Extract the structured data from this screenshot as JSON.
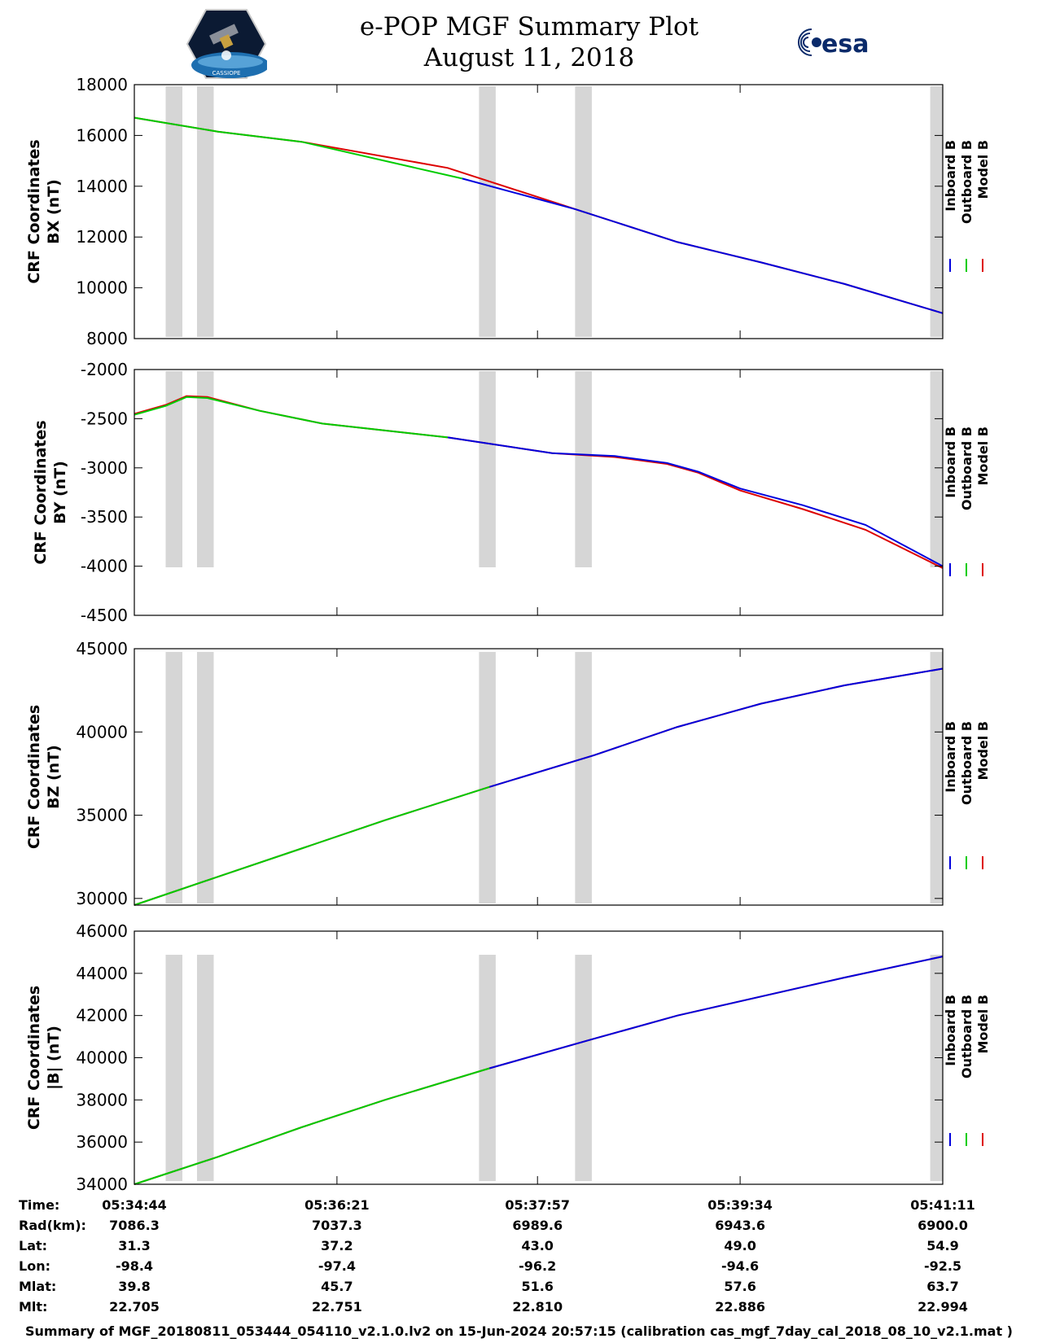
{
  "header": {
    "title_line1": "e-POP MGF Summary Plot",
    "title_line2": "August 11, 2018",
    "logo_left_text": "CASSIOPE",
    "logo_right_text": "esa"
  },
  "legend_entries": [
    {
      "name": "Inboard B",
      "color": "#0000dd"
    },
    {
      "name": "Outboard B",
      "color": "#00cc00"
    },
    {
      "name": "Model B",
      "color": "#dd0000"
    }
  ],
  "chart_data": [
    {
      "type": "line",
      "ylabel": [
        "CRF Coordinates",
        "BX (nT)"
      ],
      "ylim": [
        8000,
        18000
      ],
      "yticks": [
        8000,
        10000,
        12000,
        14000,
        16000,
        18000
      ],
      "xlim": [
        0,
        387
      ],
      "xticks": [
        0,
        97,
        193,
        290,
        387
      ],
      "gray_bands": [
        [
          15,
          23
        ],
        [
          30,
          38
        ],
        [
          165,
          173
        ],
        [
          211,
          219
        ],
        [
          381,
          387
        ]
      ],
      "series": [
        {
          "name": "Model B",
          "color": "#dd0000",
          "x": [
            0,
            40,
            80,
            150,
            211,
            260,
            300,
            340,
            387
          ],
          "values": [
            16700,
            16150,
            15750,
            14720,
            13100,
            11800,
            11000,
            10150,
            9000
          ]
        },
        {
          "name": "Inboard B",
          "color": "#0000dd",
          "x": [
            157,
            211,
            260,
            300,
            340,
            387
          ],
          "values": [
            14300,
            13100,
            11800,
            11000,
            10150,
            9000
          ]
        },
        {
          "name": "Outboard B",
          "color": "#00cc00",
          "x": [
            0,
            40,
            80,
            157
          ],
          "values": [
            16700,
            16150,
            15750,
            14300
          ]
        }
      ]
    },
    {
      "type": "line",
      "ylabel": [
        "CRF Coordinates",
        "BY (nT)"
      ],
      "ylim": [
        -4500,
        -2000
      ],
      "yticks": [
        -4500,
        -4000,
        -3500,
        -3000,
        -2500,
        -2000
      ],
      "xlim": [
        0,
        387
      ],
      "xticks": [
        0,
        97,
        193,
        290,
        387
      ],
      "gray_bands": [
        [
          15,
          23
        ],
        [
          30,
          38
        ],
        [
          165,
          173
        ],
        [
          211,
          219
        ],
        [
          381,
          387
        ]
      ],
      "series": [
        {
          "name": "Model B",
          "color": "#dd0000",
          "x": [
            0,
            15,
            25,
            35,
            60,
            90,
            120,
            150,
            200,
            230,
            255,
            270,
            290,
            320,
            350,
            387
          ],
          "values": [
            -2450,
            -2360,
            -2270,
            -2280,
            -2420,
            -2550,
            -2620,
            -2690,
            -2850,
            -2890,
            -2960,
            -3050,
            -3230,
            -3420,
            -3630,
            -4020
          ]
        },
        {
          "name": "Inboard B",
          "color": "#0000dd",
          "x": [
            150,
            200,
            230,
            255,
            270,
            290,
            320,
            350,
            387
          ],
          "values": [
            -2690,
            -2850,
            -2880,
            -2950,
            -3040,
            -3210,
            -3380,
            -3580,
            -4000
          ]
        },
        {
          "name": "Outboard B",
          "color": "#00cc00",
          "x": [
            0,
            15,
            25,
            35,
            60,
            90,
            120,
            150
          ],
          "values": [
            -2460,
            -2370,
            -2280,
            -2290,
            -2420,
            -2550,
            -2620,
            -2690
          ]
        }
      ]
    },
    {
      "type": "line",
      "ylabel": [
        "CRF Coordinates",
        "BZ (nT)"
      ],
      "ylim": [
        29600,
        45000
      ],
      "yticks": [
        30000,
        35000,
        40000,
        45000
      ],
      "xlim": [
        0,
        387
      ],
      "xticks": [
        0,
        97,
        193,
        290,
        387
      ],
      "gray_bands": [
        [
          15,
          23
        ],
        [
          30,
          38
        ],
        [
          165,
          173
        ],
        [
          211,
          219
        ],
        [
          381,
          387
        ]
      ],
      "series": [
        {
          "name": "Model B",
          "color": "#dd0000",
          "x": [
            0,
            40,
            80,
            120,
            170,
            220,
            260,
            300,
            340,
            387
          ],
          "values": [
            29600,
            31300,
            33000,
            34700,
            36700,
            38600,
            40300,
            41700,
            42800,
            43800
          ]
        },
        {
          "name": "Inboard B",
          "color": "#0000dd",
          "x": [
            170,
            220,
            260,
            300,
            340,
            387
          ],
          "values": [
            36700,
            38600,
            40300,
            41700,
            42800,
            43800
          ]
        },
        {
          "name": "Outboard B",
          "color": "#00cc00",
          "x": [
            0,
            40,
            80,
            120,
            170
          ],
          "values": [
            29600,
            31300,
            33000,
            34700,
            36700
          ]
        }
      ]
    },
    {
      "type": "line",
      "ylabel": [
        "CRF Coordinates",
        "|B| (nT)"
      ],
      "ylim": [
        34000,
        46000
      ],
      "yticks": [
        34000,
        36000,
        38000,
        40000,
        42000,
        44000,
        46000
      ],
      "xlim": [
        0,
        387
      ],
      "xticks": [
        0,
        97,
        193,
        290,
        387
      ],
      "gray_bands": [
        [
          15,
          23
        ],
        [
          30,
          38
        ],
        [
          165,
          173
        ],
        [
          211,
          219
        ],
        [
          381,
          387
        ]
      ],
      "series": [
        {
          "name": "Model B",
          "color": "#dd0000",
          "x": [
            0,
            40,
            80,
            120,
            170,
            220,
            260,
            300,
            340,
            387
          ],
          "values": [
            34000,
            35300,
            36700,
            38000,
            39500,
            40900,
            42000,
            42900,
            43800,
            44800
          ]
        },
        {
          "name": "Inboard B",
          "color": "#0000dd",
          "x": [
            170,
            220,
            260,
            300,
            340,
            387
          ],
          "values": [
            39500,
            40900,
            42000,
            42900,
            43800,
            44800
          ]
        },
        {
          "name": "Outboard B",
          "color": "#00cc00",
          "x": [
            0,
            40,
            80,
            120,
            170
          ],
          "values": [
            34000,
            35300,
            36700,
            38000,
            39500
          ]
        }
      ]
    }
  ],
  "ephemeris": {
    "rows": [
      {
        "label": "Time:",
        "values": [
          "05:34:44",
          "05:36:21",
          "05:37:57",
          "05:39:34",
          "05:41:11"
        ]
      },
      {
        "label": "Rad(km):",
        "values": [
          "7086.3",
          "7037.3",
          "6989.6",
          "6943.6",
          "6900.0"
        ]
      },
      {
        "label": "Lat:",
        "values": [
          "31.3",
          "37.2",
          "43.0",
          "49.0",
          "54.9"
        ]
      },
      {
        "label": "Lon:",
        "values": [
          "-98.4",
          "-97.4",
          "-96.2",
          "-94.6",
          "-92.5"
        ]
      },
      {
        "label": "Mlat:",
        "values": [
          "39.8",
          "45.7",
          "51.6",
          "57.6",
          "63.7"
        ]
      },
      {
        "label": "Mlt:",
        "values": [
          "22.705",
          "22.751",
          "22.810",
          "22.886",
          "22.994"
        ]
      }
    ]
  },
  "footer": "Summary of MGF_20180811_053444_054110_v2.1.0.lv2 on 15-Jun-2024 20:57:15 (calibration cas_mgf_7day_cal_2018_08_10_v2.1.mat )"
}
